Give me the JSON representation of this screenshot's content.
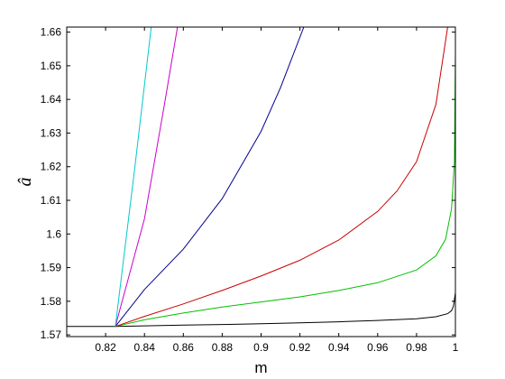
{
  "chart_data": {
    "type": "line",
    "title": "",
    "xlabel": "m",
    "ylabel": "â",
    "xlim": [
      0.8,
      1.0
    ],
    "ylim": [
      1.5695,
      1.6615
    ],
    "grid": false,
    "legend": "none",
    "x_ticks": [
      0.82,
      0.84,
      0.86,
      0.88,
      0.9,
      0.92,
      0.94,
      0.96,
      0.98,
      1.0
    ],
    "x_tick_labels": [
      "0.82",
      "0.84",
      "0.86",
      "0.88",
      "0.9",
      "0.92",
      "0.94",
      "0.96",
      "0.98",
      "1"
    ],
    "y_ticks": [
      1.57,
      1.58,
      1.59,
      1.6,
      1.61,
      1.62,
      1.63,
      1.64,
      1.65,
      1.66
    ],
    "y_tick_labels": [
      "1.57",
      "1.58",
      "1.59",
      "1.6",
      "1.61",
      "1.62",
      "1.63",
      "1.64",
      "1.65",
      "1.66"
    ],
    "series": [
      {
        "color": "#000000",
        "x": [
          0.8,
          0.825,
          0.84,
          0.86,
          0.88,
          0.9,
          0.92,
          0.94,
          0.96,
          0.98,
          0.99,
          0.996,
          0.998,
          0.999,
          1.0,
          1.0
        ],
        "y": [
          1.5725,
          1.5725,
          1.5727,
          1.5729,
          1.5731,
          1.5733,
          1.5736,
          1.5739,
          1.5743,
          1.5748,
          1.5754,
          1.5763,
          1.5772,
          1.5785,
          1.5825,
          1.5895
        ]
      },
      {
        "color": "#00c000",
        "x": [
          0.825,
          0.84,
          0.86,
          0.88,
          0.9,
          0.92,
          0.94,
          0.96,
          0.98,
          0.99,
          0.995,
          0.998,
          0.9995,
          1.0
        ],
        "y": [
          1.5725,
          1.5745,
          1.5765,
          1.5783,
          1.5798,
          1.5813,
          1.5832,
          1.5855,
          1.5893,
          1.5935,
          1.5985,
          1.6075,
          1.6215,
          1.6535
        ]
      },
      {
        "color": "#cc0000",
        "x": [
          0.825,
          0.84,
          0.86,
          0.88,
          0.9,
          0.92,
          0.94,
          0.96,
          0.97,
          0.98,
          0.99,
          0.996
        ],
        "y": [
          1.5725,
          1.5755,
          1.5792,
          1.5832,
          1.5875,
          1.5922,
          1.5982,
          1.6067,
          1.6128,
          1.6215,
          1.6385,
          1.6615
        ]
      },
      {
        "color": "#000090",
        "x": [
          0.825,
          0.84,
          0.86,
          0.88,
          0.9,
          0.91,
          0.922
        ],
        "y": [
          1.5725,
          1.5835,
          1.5955,
          1.6105,
          1.6305,
          1.6435,
          1.6615
        ]
      },
      {
        "color": "#cc00cc",
        "x": [
          0.825,
          0.84,
          0.85,
          0.857
        ],
        "y": [
          1.5725,
          1.6045,
          1.6375,
          1.6615
        ]
      },
      {
        "color": "#00c8d0",
        "x": [
          0.825,
          0.835,
          0.8435
        ],
        "y": [
          1.5725,
          1.6195,
          1.6615
        ]
      }
    ]
  }
}
